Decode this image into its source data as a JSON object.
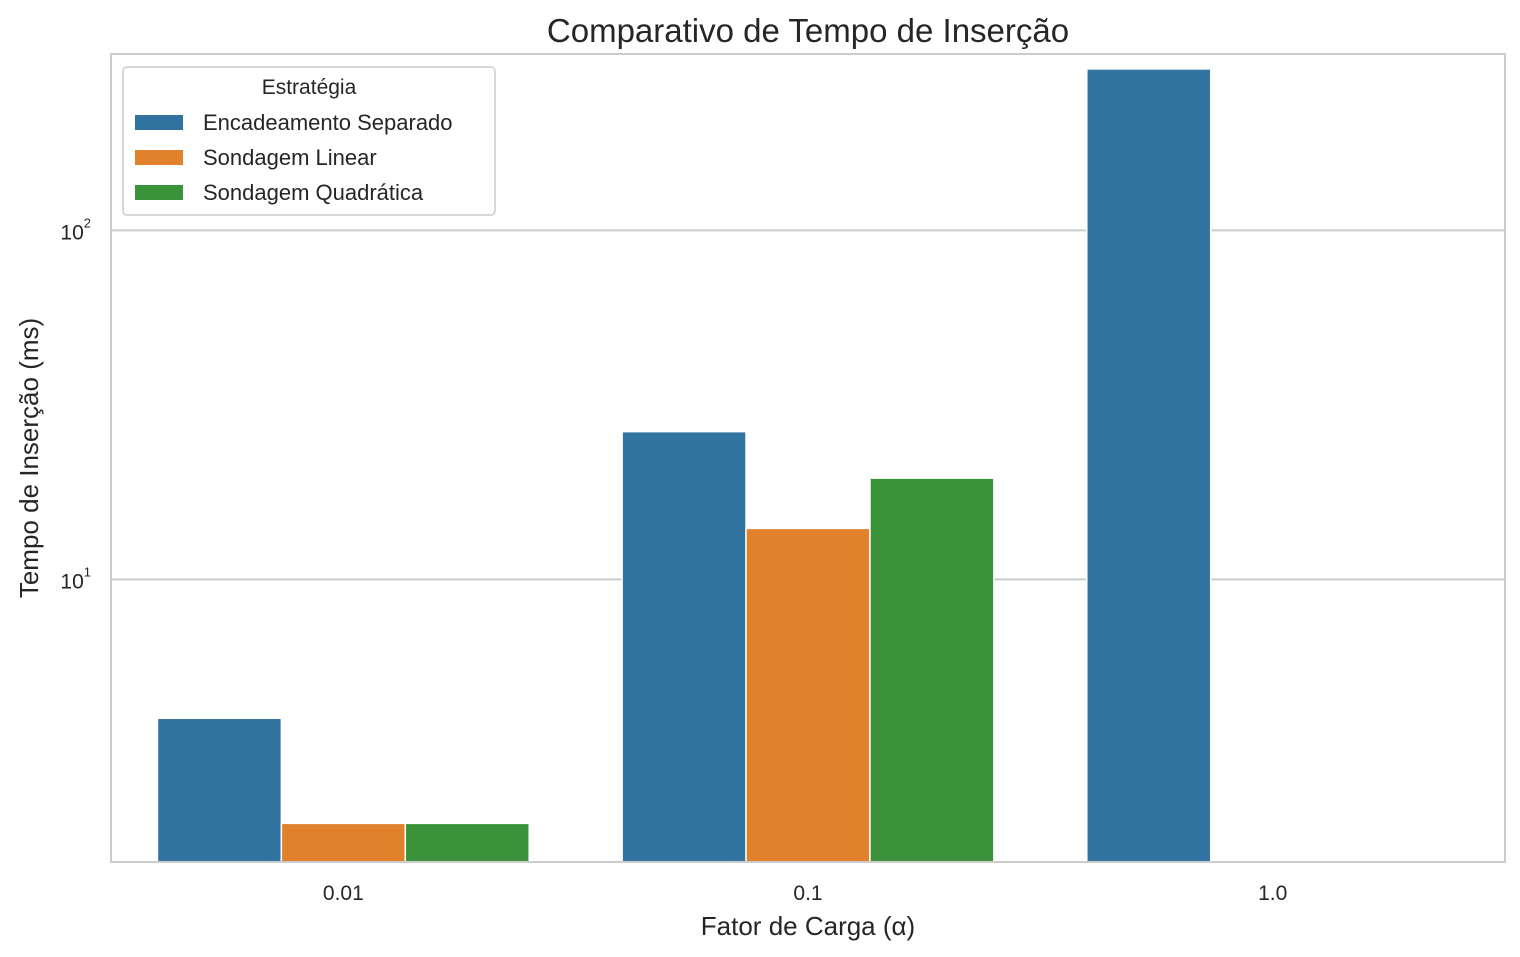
{
  "chart_data": {
    "type": "bar",
    "title": "Comparativo de Tempo de Inserção",
    "xlabel": "Fator de Carga (α)",
    "ylabel": "Tempo de Inserção (ms)",
    "yscale": "log",
    "ylim": [
      1.55,
      320
    ],
    "yticks": [
      {
        "value": 10,
        "base": "10",
        "exp": "1"
      },
      {
        "value": 100,
        "base": "10",
        "exp": "2"
      }
    ],
    "grid": "horizontal",
    "categories": [
      "0.01",
      "0.1",
      "1.0"
    ],
    "series": [
      {
        "name": "Encadeamento Separado",
        "color": "#3274a1",
        "values": [
          4.0,
          26.5,
          290
        ]
      },
      {
        "name": "Sondagem Linear",
        "color": "#e1812c",
        "values": [
          2.0,
          14.0,
          null
        ]
      },
      {
        "name": "Sondagem Quadrática",
        "color": "#3a923a",
        "values": [
          2.0,
          19.5,
          null
        ]
      }
    ],
    "legend": {
      "title": "Estratégia",
      "position": "top-left"
    }
  }
}
